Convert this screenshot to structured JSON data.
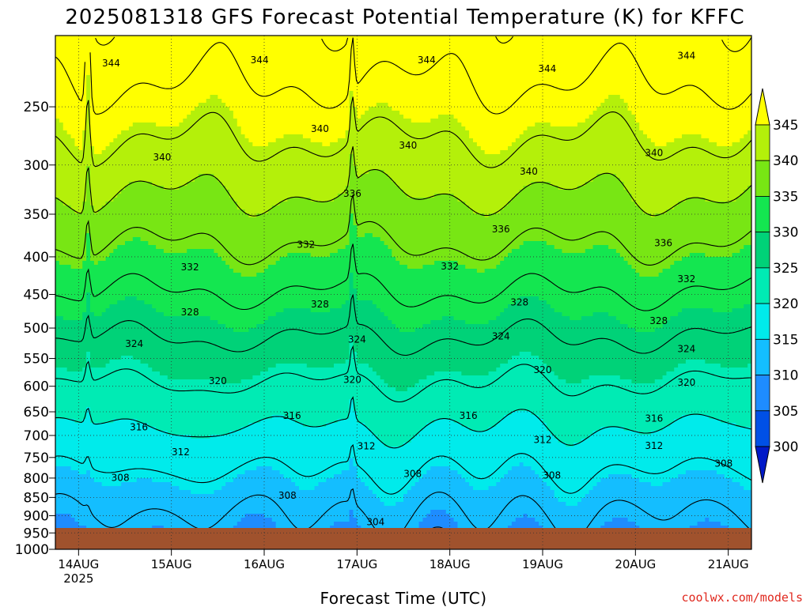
{
  "chart_data": {
    "type": "heatmap",
    "title": "2025081318 GFS Forecast Potential Temperature (K) for KFFC",
    "xlabel": "Forecast Time (UTC)",
    "ylabel": "",
    "x_ticks": [
      {
        "label": "14AUG",
        "sublabel": "2025",
        "day": 0
      },
      {
        "label": "15AUG",
        "day": 1
      },
      {
        "label": "16AUG",
        "day": 2
      },
      {
        "label": "17AUG",
        "day": 3
      },
      {
        "label": "18AUG",
        "day": 4
      },
      {
        "label": "19AUG",
        "day": 5
      },
      {
        "label": "20AUG",
        "day": 6
      },
      {
        "label": "21AUG",
        "day": 7
      }
    ],
    "x_range_days": [
      -0.25,
      7.25
    ],
    "y_axis": {
      "scale": "log",
      "reversed": true,
      "range_hPa": [
        1000,
        200
      ],
      "ticks": [
        250,
        300,
        350,
        400,
        450,
        500,
        550,
        600,
        650,
        700,
        750,
        800,
        850,
        900,
        950,
        1000
      ]
    },
    "grid": true,
    "colorbar": {
      "position": "right",
      "levels": [
        300,
        305,
        310,
        315,
        320,
        325,
        330,
        335,
        340,
        345
      ],
      "labels": [
        "300",
        "305",
        "310",
        "315",
        "320",
        "325",
        "330",
        "335",
        "340",
        "345"
      ],
      "colors": [
        "#0019c8",
        "#0050e6",
        "#1e8cff",
        "#14beff",
        "#00ebeb",
        "#00ebb4",
        "#00d278",
        "#14e650",
        "#78e614",
        "#b4f00a",
        "#ffff00"
      ],
      "extend": "both"
    },
    "contour_interval": 4,
    "contour_labels": [
      {
        "text": "344",
        "day": 0.35,
        "p": 218
      },
      {
        "text": "344",
        "day": 1.95,
        "p": 216
      },
      {
        "text": "344",
        "day": 3.75,
        "p": 216
      },
      {
        "text": "344",
        "day": 5.05,
        "p": 222
      },
      {
        "text": "344",
        "day": 6.55,
        "p": 213
      },
      {
        "text": "340",
        "day": 0.9,
        "p": 293
      },
      {
        "text": "340",
        "day": 2.6,
        "p": 268
      },
      {
        "text": "340",
        "day": 3.55,
        "p": 282
      },
      {
        "text": "340",
        "day": 4.85,
        "p": 306
      },
      {
        "text": "340",
        "day": 6.2,
        "p": 289
      },
      {
        "text": "336",
        "day": 2.95,
        "p": 328
      },
      {
        "text": "336",
        "day": 4.55,
        "p": 367
      },
      {
        "text": "336",
        "day": 6.3,
        "p": 383
      },
      {
        "text": "332",
        "day": 1.2,
        "p": 413
      },
      {
        "text": "332",
        "day": 2.45,
        "p": 385
      },
      {
        "text": "332",
        "day": 4.0,
        "p": 412
      },
      {
        "text": "332",
        "day": 6.55,
        "p": 429
      },
      {
        "text": "328",
        "day": 1.2,
        "p": 476
      },
      {
        "text": "328",
        "day": 2.6,
        "p": 464
      },
      {
        "text": "328",
        "day": 4.75,
        "p": 461
      },
      {
        "text": "328",
        "day": 6.25,
        "p": 489
      },
      {
        "text": "324",
        "day": 0.6,
        "p": 525
      },
      {
        "text": "324",
        "day": 3.0,
        "p": 518
      },
      {
        "text": "324",
        "day": 4.55,
        "p": 513
      },
      {
        "text": "324",
        "day": 6.55,
        "p": 534
      },
      {
        "text": "320",
        "day": 1.5,
        "p": 590
      },
      {
        "text": "320",
        "day": 2.95,
        "p": 588
      },
      {
        "text": "320",
        "day": 5.0,
        "p": 570
      },
      {
        "text": "320",
        "day": 6.55,
        "p": 593
      },
      {
        "text": "316",
        "day": 0.65,
        "p": 682
      },
      {
        "text": "316",
        "day": 2.3,
        "p": 658
      },
      {
        "text": "316",
        "day": 4.2,
        "p": 658
      },
      {
        "text": "316",
        "day": 6.2,
        "p": 664
      },
      {
        "text": "312",
        "day": 1.1,
        "p": 737
      },
      {
        "text": "312",
        "day": 3.1,
        "p": 724
      },
      {
        "text": "312",
        "day": 5.0,
        "p": 710
      },
      {
        "text": "312",
        "day": 6.2,
        "p": 723
      },
      {
        "text": "308",
        "day": 0.45,
        "p": 799
      },
      {
        "text": "308",
        "day": 2.25,
        "p": 845
      },
      {
        "text": "308",
        "day": 3.6,
        "p": 789
      },
      {
        "text": "308",
        "day": 5.1,
        "p": 793
      },
      {
        "text": "308",
        "day": 6.95,
        "p": 764
      },
      {
        "text": "304",
        "day": 3.2,
        "p": 918
      }
    ]
  },
  "credit": "coolwx.com/models"
}
